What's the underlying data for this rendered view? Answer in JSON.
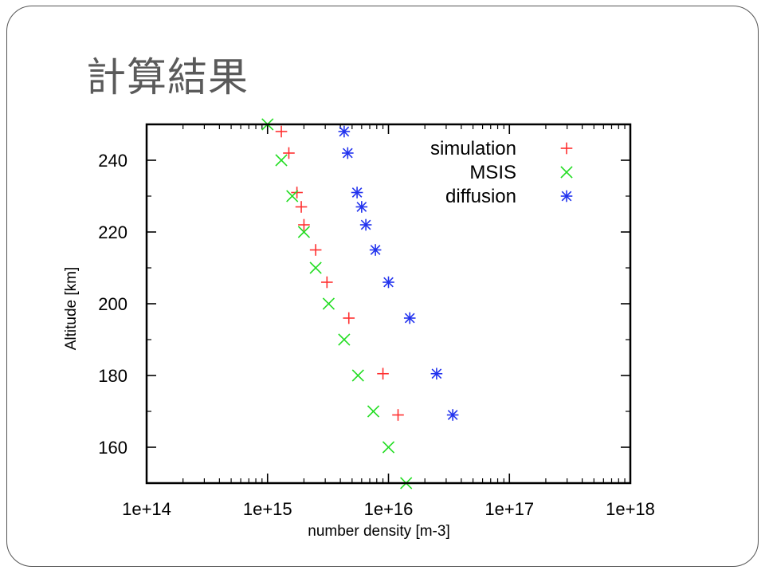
{
  "slide": {
    "title": "計算結果"
  },
  "chart_data": {
    "type": "scatter",
    "xlabel": "number density [m-3]",
    "ylabel": "Altitude [km]",
    "xscale": "log",
    "xlim": [
      100000000000000.0,
      1e+18
    ],
    "ylim": [
      150,
      250
    ],
    "xticks": [
      100000000000000.0,
      1000000000000000.0,
      1e+16,
      1e+17,
      1e+18
    ],
    "xtick_labels": [
      "1e+14",
      "1e+15",
      "1e+16",
      "1e+17",
      "1e+18"
    ],
    "yticks": [
      160,
      180,
      200,
      220,
      240
    ],
    "ytick_labels": [
      "160",
      "180",
      "200",
      "220",
      "240"
    ],
    "grid": false,
    "legend_position": "top-right",
    "series": [
      {
        "name": "simulation",
        "marker": "plus",
        "color": "#ff3030",
        "points": [
          [
            1300000000000000.0,
            248
          ],
          [
            1500000000000000.0,
            242
          ],
          [
            1750000000000000.0,
            231
          ],
          [
            1900000000000000.0,
            227
          ],
          [
            2000000000000000.0,
            222
          ],
          [
            2500000000000000.0,
            215
          ],
          [
            3100000000000000.0,
            206
          ],
          [
            4700000000000000.0,
            196
          ],
          [
            9000000000000000.0,
            180.5
          ],
          [
            1.2e+16,
            169
          ]
        ]
      },
      {
        "name": "MSIS",
        "marker": "cross",
        "color": "#22dd22",
        "points": [
          [
            1000000000000000.0,
            250
          ],
          [
            1300000000000000.0,
            240
          ],
          [
            1600000000000000.0,
            230
          ],
          [
            2000000000000000.0,
            220
          ],
          [
            2500000000000000.0,
            210
          ],
          [
            3200000000000000.0,
            200
          ],
          [
            4300000000000000.0,
            190
          ],
          [
            5600000000000000.0,
            180
          ],
          [
            7500000000000000.0,
            170
          ],
          [
            1e+16,
            160
          ],
          [
            1.4e+16,
            150
          ]
        ]
      },
      {
        "name": "diffusion",
        "marker": "star",
        "color": "#2233ee",
        "points": [
          [
            4300000000000000.0,
            248
          ],
          [
            4600000000000000.0,
            242
          ],
          [
            5500000000000000.0,
            231
          ],
          [
            6000000000000000.0,
            227
          ],
          [
            6500000000000000.0,
            222
          ],
          [
            7800000000000000.0,
            215
          ],
          [
            1e+16,
            206
          ],
          [
            1.5e+16,
            196
          ],
          [
            2.5e+16,
            180.5
          ],
          [
            3.4e+16,
            169
          ]
        ]
      }
    ]
  }
}
